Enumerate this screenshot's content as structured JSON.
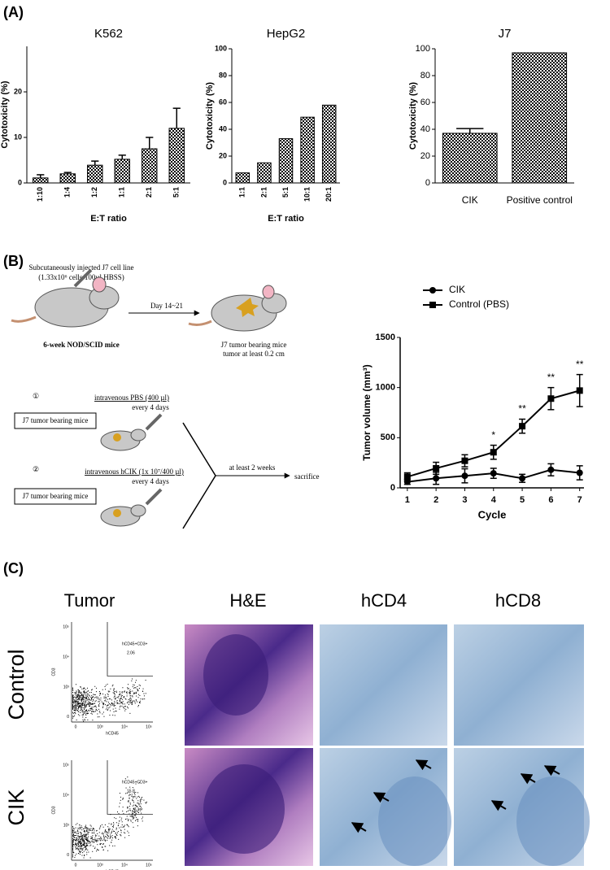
{
  "panel_labels": [
    "(A)",
    "(B)",
    "(C)"
  ],
  "chart_data": [
    {
      "type": "bar",
      "title": "K562",
      "x_label": "E:T ratio",
      "y_label": "Cytotoxicity (%)",
      "categories": [
        "1:10",
        "1:4",
        "1:2",
        "1:1",
        "2:1",
        "5:1"
      ],
      "values": [
        1.1,
        2.0,
        3.9,
        5.2,
        7.5,
        12.0
      ],
      "errors": [
        0.7,
        0.3,
        0.9,
        0.9,
        2.5,
        4.4
      ],
      "ylim": [
        0,
        30
      ],
      "yticks": [
        0,
        10,
        20
      ],
      "color": "#000000"
    },
    {
      "type": "bar",
      "title": "HepG2",
      "x_label": "E:T ratio",
      "y_label": "Cytotoxicity (%)",
      "categories": [
        "1:1",
        "2:1",
        "5:1",
        "10:1",
        "20:1"
      ],
      "values": [
        7.5,
        15,
        33,
        49,
        58
      ],
      "ylim": [
        0,
        100
      ],
      "yticks": [
        0,
        20,
        40,
        60,
        80,
        100
      ],
      "color": "#000000"
    },
    {
      "type": "bar",
      "title": "J7",
      "y_label": "Cytotoxicity (%)",
      "categories": [
        "CIK",
        "Positive control"
      ],
      "values": [
        37,
        97
      ],
      "errors": [
        3.5,
        null
      ],
      "ylim": [
        0,
        100
      ],
      "yticks": [
        0,
        20,
        40,
        60,
        80,
        100
      ],
      "color": "#000000"
    },
    {
      "type": "line",
      "x_label": "Cycle",
      "y_label": "Tumor volume (mm³)",
      "x": [
        1,
        2,
        3,
        4,
        5,
        6,
        7
      ],
      "xlim": [
        0.75,
        7.15
      ],
      "xticks": [
        1,
        2,
        3,
        4,
        5,
        6,
        7
      ],
      "ylim": [
        0,
        1500
      ],
      "yticks": [
        0,
        500,
        1000,
        1500
      ],
      "legend": "top",
      "series": [
        {
          "name": "CIK",
          "marker": "circle",
          "color": "#000000",
          "values": [
            60,
            95,
            120,
            145,
            95,
            180,
            150
          ],
          "errors": [
            25,
            60,
            70,
            50,
            40,
            60,
            70
          ]
        },
        {
          "name": "Control (PBS)",
          "marker": "square",
          "color": "#000000",
          "values": [
            110,
            195,
            270,
            355,
            615,
            890,
            970
          ],
          "errors": [
            40,
            60,
            60,
            70,
            70,
            110,
            160
          ]
        }
      ],
      "annotations": [
        {
          "x": 4,
          "text": "*"
        },
        {
          "x": 5,
          "text": "**"
        },
        {
          "x": 6,
          "text": "**"
        },
        {
          "x": 7,
          "text": "**"
        }
      ]
    }
  ],
  "diagram": {
    "injection": [
      "Subcutaneously injected J7 cell line",
      "(1.33x10⁶ cells/100µl HBSS)"
    ],
    "mice": "6-week NOD/SCID mice",
    "day": "Day 14~21",
    "tumor_mice": [
      "J7 tumor bearing mice",
      "tumor at least 0.2 cm"
    ],
    "groups": [
      {
        "number": "①",
        "treatment": "intravenous PBS (400 µl)",
        "schedule": "every 4 days",
        "box": "J7 tumor bearing mice"
      },
      {
        "number": "②",
        "treatment": "intravenous hCIK (1x 10⁷/400 µl)",
        "schedule": "every 4 days",
        "box": "J7 tumor bearing mice"
      }
    ],
    "duration": "at least 2 weeks",
    "end": "sacrifice"
  },
  "histology": {
    "columns": [
      "Tumor",
      "H&E",
      "hCD4",
      "hCD8"
    ],
    "rows": [
      "Control",
      "CIK"
    ],
    "flow": {
      "x_label": "hCD45",
      "y_label": "CD3",
      "gate": "hCD45+CD3+",
      "ticks": [
        "0",
        "10³",
        "10⁴",
        "10⁵"
      ],
      "percentages": [
        "2.06",
        "15.8"
      ]
    }
  }
}
